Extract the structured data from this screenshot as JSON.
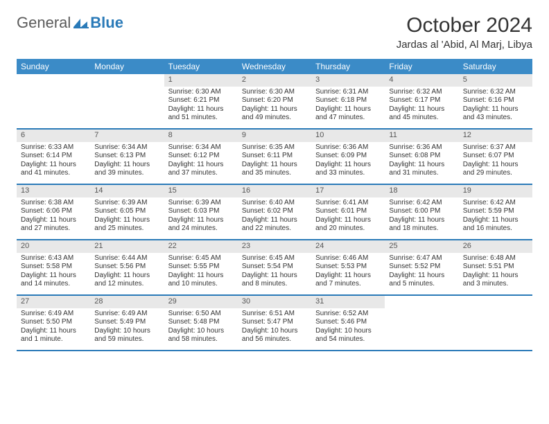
{
  "logo": {
    "general": "General",
    "blue": "Blue"
  },
  "title": "October 2024",
  "location": "Jardas al 'Abid, Al Marj, Libya",
  "colors": {
    "header_bar": "#3b8bc7",
    "row_border": "#2a7ab8",
    "day_number_bg": "#e8e8e8",
    "text": "#333333",
    "logo_gray": "#5a5a5a",
    "logo_blue": "#2a7ab8"
  },
  "weekdays": [
    "Sunday",
    "Monday",
    "Tuesday",
    "Wednesday",
    "Thursday",
    "Friday",
    "Saturday"
  ],
  "weeks": [
    [
      {
        "empty": true
      },
      {
        "empty": true
      },
      {
        "n": "1",
        "sr": "Sunrise: 6:30 AM",
        "ss": "Sunset: 6:21 PM",
        "dl1": "Daylight: 11 hours",
        "dl2": "and 51 minutes."
      },
      {
        "n": "2",
        "sr": "Sunrise: 6:30 AM",
        "ss": "Sunset: 6:20 PM",
        "dl1": "Daylight: 11 hours",
        "dl2": "and 49 minutes."
      },
      {
        "n": "3",
        "sr": "Sunrise: 6:31 AM",
        "ss": "Sunset: 6:18 PM",
        "dl1": "Daylight: 11 hours",
        "dl2": "and 47 minutes."
      },
      {
        "n": "4",
        "sr": "Sunrise: 6:32 AM",
        "ss": "Sunset: 6:17 PM",
        "dl1": "Daylight: 11 hours",
        "dl2": "and 45 minutes."
      },
      {
        "n": "5",
        "sr": "Sunrise: 6:32 AM",
        "ss": "Sunset: 6:16 PM",
        "dl1": "Daylight: 11 hours",
        "dl2": "and 43 minutes."
      }
    ],
    [
      {
        "n": "6",
        "sr": "Sunrise: 6:33 AM",
        "ss": "Sunset: 6:14 PM",
        "dl1": "Daylight: 11 hours",
        "dl2": "and 41 minutes."
      },
      {
        "n": "7",
        "sr": "Sunrise: 6:34 AM",
        "ss": "Sunset: 6:13 PM",
        "dl1": "Daylight: 11 hours",
        "dl2": "and 39 minutes."
      },
      {
        "n": "8",
        "sr": "Sunrise: 6:34 AM",
        "ss": "Sunset: 6:12 PM",
        "dl1": "Daylight: 11 hours",
        "dl2": "and 37 minutes."
      },
      {
        "n": "9",
        "sr": "Sunrise: 6:35 AM",
        "ss": "Sunset: 6:11 PM",
        "dl1": "Daylight: 11 hours",
        "dl2": "and 35 minutes."
      },
      {
        "n": "10",
        "sr": "Sunrise: 6:36 AM",
        "ss": "Sunset: 6:09 PM",
        "dl1": "Daylight: 11 hours",
        "dl2": "and 33 minutes."
      },
      {
        "n": "11",
        "sr": "Sunrise: 6:36 AM",
        "ss": "Sunset: 6:08 PM",
        "dl1": "Daylight: 11 hours",
        "dl2": "and 31 minutes."
      },
      {
        "n": "12",
        "sr": "Sunrise: 6:37 AM",
        "ss": "Sunset: 6:07 PM",
        "dl1": "Daylight: 11 hours",
        "dl2": "and 29 minutes."
      }
    ],
    [
      {
        "n": "13",
        "sr": "Sunrise: 6:38 AM",
        "ss": "Sunset: 6:06 PM",
        "dl1": "Daylight: 11 hours",
        "dl2": "and 27 minutes."
      },
      {
        "n": "14",
        "sr": "Sunrise: 6:39 AM",
        "ss": "Sunset: 6:05 PM",
        "dl1": "Daylight: 11 hours",
        "dl2": "and 25 minutes."
      },
      {
        "n": "15",
        "sr": "Sunrise: 6:39 AM",
        "ss": "Sunset: 6:03 PM",
        "dl1": "Daylight: 11 hours",
        "dl2": "and 24 minutes."
      },
      {
        "n": "16",
        "sr": "Sunrise: 6:40 AM",
        "ss": "Sunset: 6:02 PM",
        "dl1": "Daylight: 11 hours",
        "dl2": "and 22 minutes."
      },
      {
        "n": "17",
        "sr": "Sunrise: 6:41 AM",
        "ss": "Sunset: 6:01 PM",
        "dl1": "Daylight: 11 hours",
        "dl2": "and 20 minutes."
      },
      {
        "n": "18",
        "sr": "Sunrise: 6:42 AM",
        "ss": "Sunset: 6:00 PM",
        "dl1": "Daylight: 11 hours",
        "dl2": "and 18 minutes."
      },
      {
        "n": "19",
        "sr": "Sunrise: 6:42 AM",
        "ss": "Sunset: 5:59 PM",
        "dl1": "Daylight: 11 hours",
        "dl2": "and 16 minutes."
      }
    ],
    [
      {
        "n": "20",
        "sr": "Sunrise: 6:43 AM",
        "ss": "Sunset: 5:58 PM",
        "dl1": "Daylight: 11 hours",
        "dl2": "and 14 minutes."
      },
      {
        "n": "21",
        "sr": "Sunrise: 6:44 AM",
        "ss": "Sunset: 5:56 PM",
        "dl1": "Daylight: 11 hours",
        "dl2": "and 12 minutes."
      },
      {
        "n": "22",
        "sr": "Sunrise: 6:45 AM",
        "ss": "Sunset: 5:55 PM",
        "dl1": "Daylight: 11 hours",
        "dl2": "and 10 minutes."
      },
      {
        "n": "23",
        "sr": "Sunrise: 6:45 AM",
        "ss": "Sunset: 5:54 PM",
        "dl1": "Daylight: 11 hours",
        "dl2": "and 8 minutes."
      },
      {
        "n": "24",
        "sr": "Sunrise: 6:46 AM",
        "ss": "Sunset: 5:53 PM",
        "dl1": "Daylight: 11 hours",
        "dl2": "and 7 minutes."
      },
      {
        "n": "25",
        "sr": "Sunrise: 6:47 AM",
        "ss": "Sunset: 5:52 PM",
        "dl1": "Daylight: 11 hours",
        "dl2": "and 5 minutes."
      },
      {
        "n": "26",
        "sr": "Sunrise: 6:48 AM",
        "ss": "Sunset: 5:51 PM",
        "dl1": "Daylight: 11 hours",
        "dl2": "and 3 minutes."
      }
    ],
    [
      {
        "n": "27",
        "sr": "Sunrise: 6:49 AM",
        "ss": "Sunset: 5:50 PM",
        "dl1": "Daylight: 11 hours",
        "dl2": "and 1 minute."
      },
      {
        "n": "28",
        "sr": "Sunrise: 6:49 AM",
        "ss": "Sunset: 5:49 PM",
        "dl1": "Daylight: 10 hours",
        "dl2": "and 59 minutes."
      },
      {
        "n": "29",
        "sr": "Sunrise: 6:50 AM",
        "ss": "Sunset: 5:48 PM",
        "dl1": "Daylight: 10 hours",
        "dl2": "and 58 minutes."
      },
      {
        "n": "30",
        "sr": "Sunrise: 6:51 AM",
        "ss": "Sunset: 5:47 PM",
        "dl1": "Daylight: 10 hours",
        "dl2": "and 56 minutes."
      },
      {
        "n": "31",
        "sr": "Sunrise: 6:52 AM",
        "ss": "Sunset: 5:46 PM",
        "dl1": "Daylight: 10 hours",
        "dl2": "and 54 minutes."
      },
      {
        "empty": true
      },
      {
        "empty": true
      }
    ]
  ]
}
